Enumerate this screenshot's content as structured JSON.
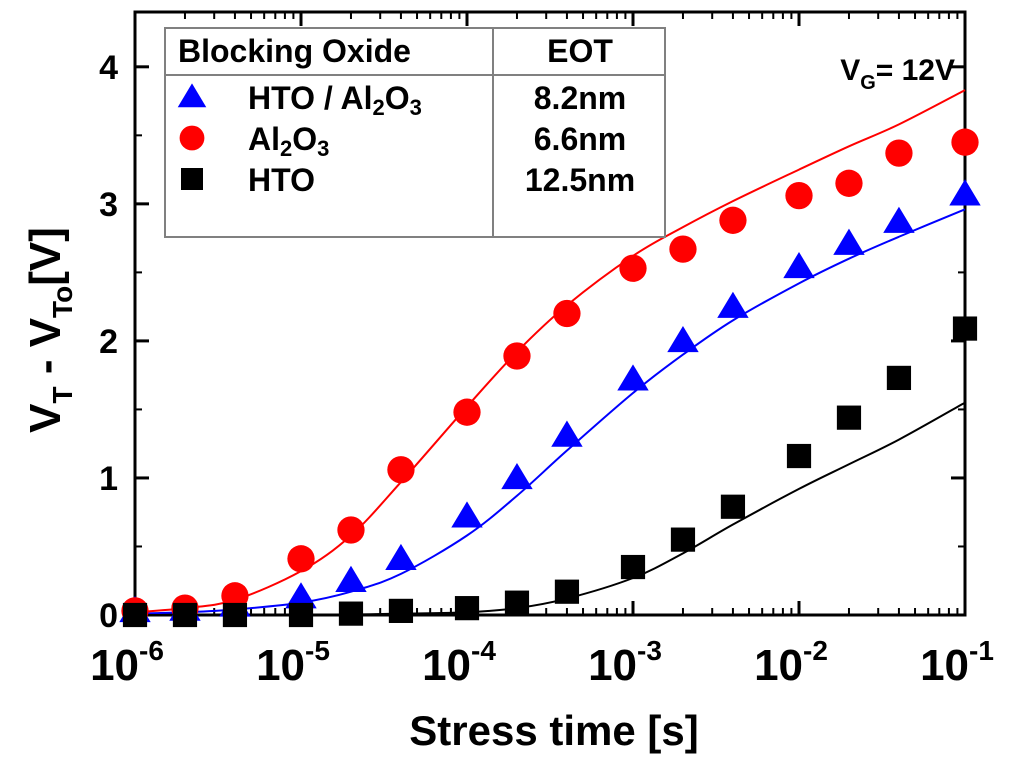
{
  "chart_data": {
    "type": "scatter",
    "x_scale": "log",
    "xlim": [
      1e-06,
      0.1
    ],
    "ylim": [
      0,
      4.4
    ],
    "xlabel": "Stress time [s]",
    "ylabel": {
      "parts": [
        {
          "text": "V",
          "sub": "T"
        },
        {
          "text": " - "
        },
        {
          "text": "V",
          "sub": "To"
        },
        {
          "text": "[V]"
        }
      ]
    },
    "x_ticks": [
      {
        "value": 1e-06,
        "base": "10",
        "exp": "-6"
      },
      {
        "value": 1e-05,
        "base": "10",
        "exp": "-5"
      },
      {
        "value": 0.0001,
        "base": "10",
        "exp": "-4"
      },
      {
        "value": 0.001,
        "base": "10",
        "exp": "-3"
      },
      {
        "value": 0.01,
        "base": "10",
        "exp": "-2"
      },
      {
        "value": 0.1,
        "base": "10",
        "exp": "-1"
      }
    ],
    "y_ticks": [
      0,
      1,
      2,
      3,
      4
    ],
    "annotation": {
      "main": "V",
      "sub": "G",
      "rest": "= 12V"
    },
    "legend": {
      "placement": "top-left",
      "header": [
        "Blocking Oxide",
        "EOT"
      ],
      "rows": [
        {
          "marker": "triangle",
          "color": "#0000ff",
          "label": {
            "parts": [
              {
                "text": "HTO / Al"
              },
              {
                "sub": "2"
              },
              {
                "text": "O"
              },
              {
                "sub": "3"
              }
            ]
          },
          "eot": "8.2nm"
        },
        {
          "marker": "circle",
          "color": "#ff0000",
          "label": {
            "parts": [
              {
                "text": "Al"
              },
              {
                "sub": "2"
              },
              {
                "text": "O"
              },
              {
                "sub": "3"
              }
            ]
          },
          "eot": "6.6nm"
        },
        {
          "marker": "square",
          "color": "#000000",
          "label": {
            "parts": [
              {
                "text": "HTO"
              }
            ]
          },
          "eot": "12.5nm"
        }
      ]
    },
    "series": [
      {
        "label_ref": 0,
        "marker": "triangle",
        "color": "#0000ff",
        "x": [
          1e-06,
          2e-06,
          4e-06,
          1e-05,
          2e-05,
          4e-05,
          0.0001,
          0.0002,
          0.0004,
          0.001,
          0.002,
          0.004,
          0.01,
          0.02,
          0.04,
          0.1
        ],
        "y": [
          0.03,
          0.04,
          0.07,
          0.13,
          0.25,
          0.41,
          0.72,
          1.0,
          1.31,
          1.72,
          2.0,
          2.25,
          2.54,
          2.71,
          2.87,
          3.07
        ],
        "fit": {
          "x": [
            1e-06,
            2e-06,
            4e-06,
            1e-05,
            2e-05,
            4e-05,
            0.0001,
            0.0002,
            0.0004,
            0.001,
            0.002,
            0.004,
            0.01,
            0.02,
            0.04,
            0.1
          ],
          "y": [
            0.01,
            0.02,
            0.04,
            0.09,
            0.17,
            0.3,
            0.58,
            0.87,
            1.2,
            1.62,
            1.9,
            2.15,
            2.42,
            2.6,
            2.76,
            2.96
          ]
        }
      },
      {
        "label_ref": 1,
        "marker": "circle",
        "color": "#ff0000",
        "x": [
          1e-06,
          2e-06,
          4e-06,
          1e-05,
          2e-05,
          4e-05,
          0.0001,
          0.0002,
          0.0004,
          0.001,
          0.002,
          0.004,
          0.01,
          0.02,
          0.04,
          0.1
        ],
        "y": [
          0.03,
          0.05,
          0.14,
          0.41,
          0.62,
          1.06,
          1.48,
          1.89,
          2.2,
          2.53,
          2.67,
          2.88,
          3.06,
          3.15,
          3.37,
          3.45
        ],
        "fit": {
          "x": [
            1e-06,
            2e-06,
            4e-06,
            1e-05,
            2e-05,
            4e-05,
            0.0001,
            0.0002,
            0.0004,
            0.001,
            0.002,
            0.004,
            0.01,
            0.02,
            0.04,
            0.1
          ],
          "y": [
            0.02,
            0.05,
            0.11,
            0.32,
            0.58,
            0.97,
            1.52,
            1.92,
            2.26,
            2.62,
            2.83,
            3.02,
            3.25,
            3.42,
            3.58,
            3.83
          ]
        }
      },
      {
        "label_ref": 2,
        "marker": "square",
        "color": "#000000",
        "x": [
          1e-06,
          2e-06,
          4e-06,
          1e-05,
          2e-05,
          4e-05,
          0.0001,
          0.0002,
          0.0004,
          0.001,
          0.002,
          0.004,
          0.01,
          0.02,
          0.04,
          0.1
        ],
        "y": [
          0.0,
          0.0,
          0.0,
          0.0,
          0.01,
          0.03,
          0.05,
          0.09,
          0.17,
          0.35,
          0.55,
          0.79,
          1.16,
          1.44,
          1.73,
          2.09
        ],
        "fit": {
          "x": [
            1e-06,
            1e-05,
            4e-05,
            0.0001,
            0.0002,
            0.0004,
            0.001,
            0.002,
            0.004,
            0.01,
            0.02,
            0.04,
            0.1
          ],
          "y": [
            0.0,
            0.0,
            0.01,
            0.02,
            0.05,
            0.12,
            0.27,
            0.45,
            0.66,
            0.92,
            1.1,
            1.28,
            1.55
          ]
        }
      }
    ]
  }
}
